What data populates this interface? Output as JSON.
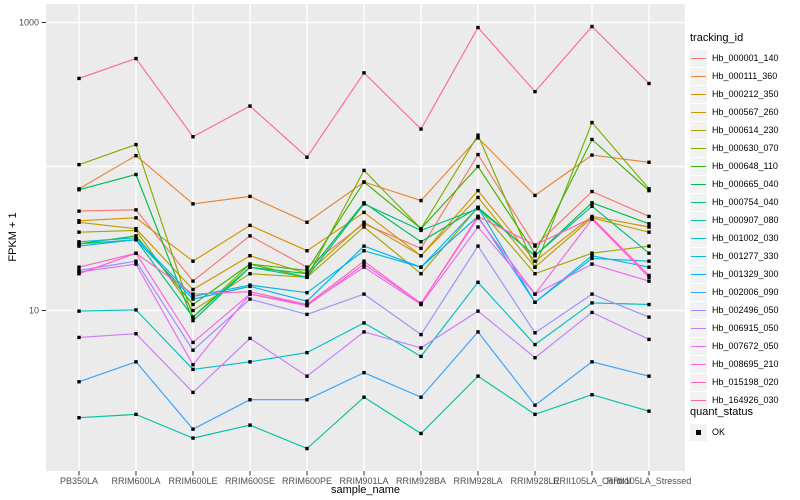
{
  "chart": {
    "panel_bg": "#EBEBEB",
    "grid_color": "#FFFFFF",
    "tick_color": "#333333",
    "tick_label_color": "#4D4D4D",
    "point_color": "#000000",
    "key_bg": "#F2F2F2"
  },
  "chart_data": {
    "type": "line",
    "title": "",
    "xlabel": "sample_name",
    "ylabel": "FPKM + 1",
    "y_scale": "log10",
    "ylim": [
      1,
      1100
    ],
    "y_tick_labels": [
      "1000",
      "10"
    ],
    "y_tick_values": [
      1000,
      10
    ],
    "y_grid_values": [
      1000,
      100,
      10
    ],
    "grid": true,
    "legend_position": "right",
    "point_shape": "filled-black-square",
    "legend_titles": [
      "tracking_id",
      "quant_status"
    ],
    "quant_status_label": "OK",
    "categories": [
      "PB350LA",
      "RRIM600LA",
      "RRIM600LE",
      "RRIM600SE",
      "RRIM600PE",
      "RRIM901LA",
      "RRIM928BA",
      "RRIM928LA",
      "RRIM928LE",
      "RRII105LA_Control",
      "RRII105LA_Stressed"
    ],
    "series": [
      {
        "name": "Hb_000001_140",
        "color": "#F8766D",
        "values": [
          49,
          50,
          16,
          33,
          20,
          40,
          27,
          121,
          28,
          67,
          45
        ]
      },
      {
        "name": "Hb_000111_360",
        "color": "#EA8331",
        "values": [
          70,
          119,
          55,
          62,
          41,
          78,
          58,
          158,
          63,
          120,
          107
        ]
      },
      {
        "name": "Hb_000212_350",
        "color": "#D89000",
        "values": [
          42,
          44,
          22,
          39,
          26,
          48,
          24,
          68,
          22,
          45,
          38
        ]
      },
      {
        "name": "Hb_000567_260",
        "color": "#C09B00",
        "values": [
          41,
          37,
          14,
          24,
          18,
          41,
          24,
          61,
          20,
          44,
          35
        ]
      },
      {
        "name": "Hb_000614_230",
        "color": "#A3A500",
        "values": [
          35,
          36,
          10,
          18,
          17,
          38,
          18,
          52,
          18,
          25,
          28
        ]
      },
      {
        "name": "Hb_000630_070",
        "color": "#7CAE00",
        "values": [
          103,
          142,
          9,
          21,
          17,
          94,
          37,
          165,
          20,
          202,
          70
        ]
      },
      {
        "name": "Hb_000648_110",
        "color": "#39B600",
        "values": [
          29,
          33,
          11,
          21,
          19,
          78,
          37,
          100,
          25,
          154,
          68
        ]
      },
      {
        "name": "Hb_000665_040",
        "color": "#00BB4E",
        "values": [
          69,
          88,
          8.5,
          20,
          18,
          56,
          30,
          52,
          24,
          56,
          40
        ]
      },
      {
        "name": "Hb_000754_040",
        "color": "#00BF7D",
        "values": [
          29,
          31,
          9,
          20,
          17,
          55,
          36,
          51,
          24,
          53,
          25
        ]
      },
      {
        "name": "Hb_000907_080",
        "color": "#00C1A3",
        "values": [
          1.8,
          1.9,
          1.3,
          1.6,
          1.1,
          2.5,
          1.4,
          3.5,
          1.9,
          2.6,
          2.0
        ]
      },
      {
        "name": "Hb_001002_030",
        "color": "#00BFC4",
        "values": [
          9.9,
          10.1,
          3.9,
          4.4,
          5.1,
          8.2,
          4.8,
          15.7,
          5.8,
          11.3,
          11.0
        ]
      },
      {
        "name": "Hb_001277_330",
        "color": "#00BAE0",
        "values": [
          30,
          32,
          12.5,
          15,
          13.3,
          26,
          20,
          52,
          11.4,
          23,
          22
        ]
      },
      {
        "name": "Hb_001329_300",
        "color": "#00B0F6",
        "values": [
          28,
          31,
          12,
          14.7,
          11.6,
          28,
          20,
          45,
          11.4,
          24,
          20
        ]
      },
      {
        "name": "Hb_002006_090",
        "color": "#35A2FF",
        "values": [
          3.2,
          4.4,
          1.5,
          2.4,
          2.4,
          3.7,
          2.5,
          7.1,
          2.2,
          4.4,
          3.5
        ]
      },
      {
        "name": "Hb_002496_050",
        "color": "#9590FF",
        "values": [
          19,
          22,
          5.3,
          12,
          9.4,
          13,
          6.8,
          28,
          7.0,
          13,
          9.0
        ]
      },
      {
        "name": "Hb_006915_050",
        "color": "#C77CFF",
        "values": [
          6.5,
          6.9,
          2.7,
          6.4,
          3.5,
          7.1,
          5.5,
          9.9,
          4.7,
          9.7,
          6.3
        ]
      },
      {
        "name": "Hb_007672_050",
        "color": "#E76BF3",
        "values": [
          18.5,
          21,
          4.2,
          13,
          11,
          20,
          11,
          38,
          13,
          21,
          16
        ]
      },
      {
        "name": "Hb_008695_210",
        "color": "#FA62DB",
        "values": [
          18,
          25,
          6,
          13,
          10.8,
          21,
          11.2,
          44,
          13,
          43,
          17
        ]
      },
      {
        "name": "Hb_015198_020",
        "color": "#FF62BC",
        "values": [
          20,
          25,
          13,
          13.5,
          11,
          22,
          11.2,
          45,
          28.5,
          44,
          17.5
        ]
      },
      {
        "name": "Hb_164926_030",
        "color": "#FF6A98",
        "values": [
          409,
          562,
          161,
          263,
          116,
          447,
          182,
          923,
          331,
          938,
          377
        ]
      }
    ]
  }
}
